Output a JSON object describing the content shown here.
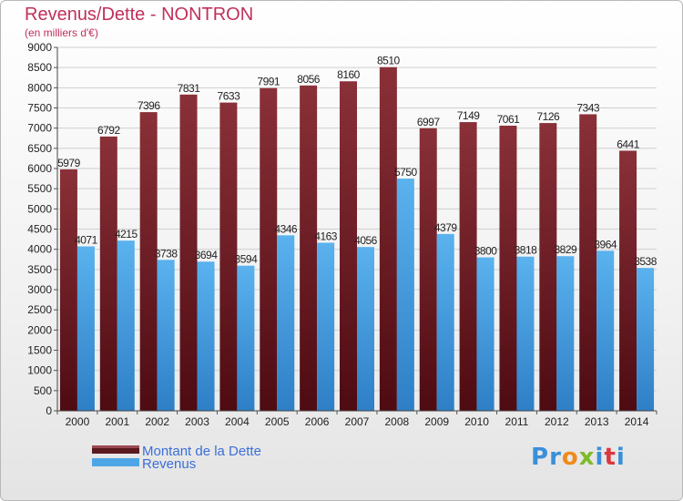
{
  "title": "Revenus/Dette - NONTRON",
  "subtitle": "(en milliers d'€)",
  "logo": {
    "text": "Proxiti",
    "colors": [
      "#3a8fd8",
      "#f08a1c",
      "#7dbb2a",
      "#d9373f"
    ]
  },
  "colors": {
    "dette": "#7a2a30",
    "revenus": "#4ea6e6",
    "title": "#c0305a",
    "legend_text": "#3b6ed8"
  },
  "chart_data": {
    "type": "bar",
    "title": "Revenus/Dette - NONTRON",
    "subtitle": "(en milliers d'€)",
    "categories": [
      "2000",
      "2001",
      "2002",
      "2003",
      "2004",
      "2005",
      "2006",
      "2007",
      "2008",
      "2009",
      "2010",
      "2011",
      "2012",
      "2013",
      "2014"
    ],
    "series": [
      {
        "name": "Montant de la Dette",
        "values": [
          5979,
          6792,
          7396,
          7831,
          7633,
          7991,
          8056,
          8160,
          8510,
          6997,
          7149,
          7061,
          7126,
          7343,
          6441
        ]
      },
      {
        "name": "Revenus",
        "values": [
          4071,
          4215,
          3738,
          3694,
          3594,
          4346,
          4163,
          4056,
          5750,
          4379,
          3800,
          3818,
          3829,
          3964,
          3538
        ]
      }
    ],
    "ylim": [
      0,
      9000
    ],
    "yticks": [
      0,
      500,
      1000,
      1500,
      2000,
      2500,
      3000,
      3500,
      4000,
      4500,
      5000,
      5500,
      6000,
      6500,
      7000,
      7500,
      8000,
      8500,
      9000
    ],
    "grid": true,
    "legend": "bottom-left"
  }
}
